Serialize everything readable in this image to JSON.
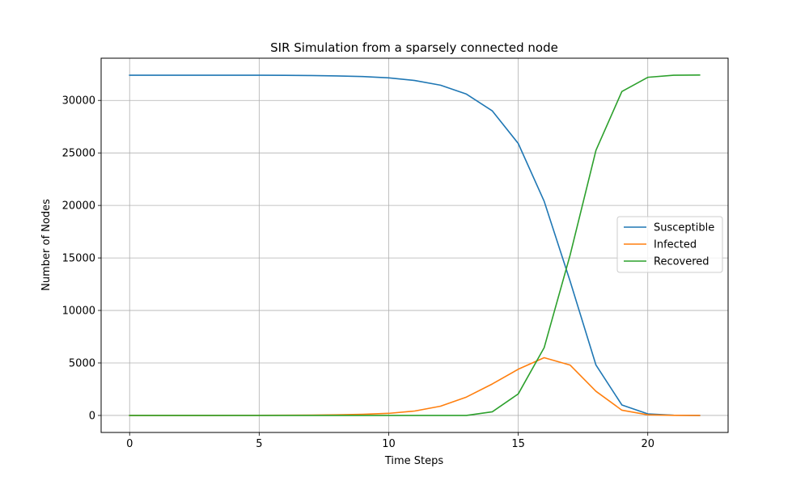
{
  "chart_data": {
    "type": "line",
    "title": "SIR Simulation from a sparsely connected node",
    "xlabel": "Time Steps",
    "ylabel": "Number of Nodes",
    "x": [
      0,
      1,
      2,
      3,
      4,
      5,
      6,
      7,
      8,
      9,
      10,
      11,
      12,
      13,
      14,
      15,
      16,
      17,
      18,
      19,
      20,
      21,
      22
    ],
    "xlim": [
      -1.1,
      23.1
    ],
    "ylim": [
      -1620,
      34020
    ],
    "xticks": [
      0,
      5,
      10,
      15,
      20
    ],
    "yticks": [
      0,
      5000,
      10000,
      15000,
      20000,
      25000,
      30000
    ],
    "grid": true,
    "legend_position": "center-right",
    "series": [
      {
        "name": "Susceptible",
        "color": "#1f77b4",
        "values": [
          32400,
          32400,
          32400,
          32400,
          32400,
          32395,
          32390,
          32370,
          32330,
          32270,
          32150,
          31900,
          31450,
          30600,
          29000,
          25900,
          20400,
          12800,
          4800,
          1000,
          150,
          20,
          5
        ]
      },
      {
        "name": "Infected",
        "color": "#ff7f0e",
        "values": [
          1,
          2,
          3,
          5,
          8,
          12,
          20,
          35,
          60,
          110,
          200,
          420,
          880,
          1750,
          3000,
          4400,
          5500,
          4800,
          2300,
          500,
          60,
          8,
          1
        ]
      },
      {
        "name": "Recovered",
        "color": "#2ca02c",
        "values": [
          0,
          0,
          0,
          0,
          0,
          0,
          0,
          0,
          0,
          0,
          0,
          0,
          0,
          0,
          350,
          2050,
          6450,
          15250,
          25250,
          30850,
          32200,
          32400,
          32420
        ]
      }
    ]
  }
}
